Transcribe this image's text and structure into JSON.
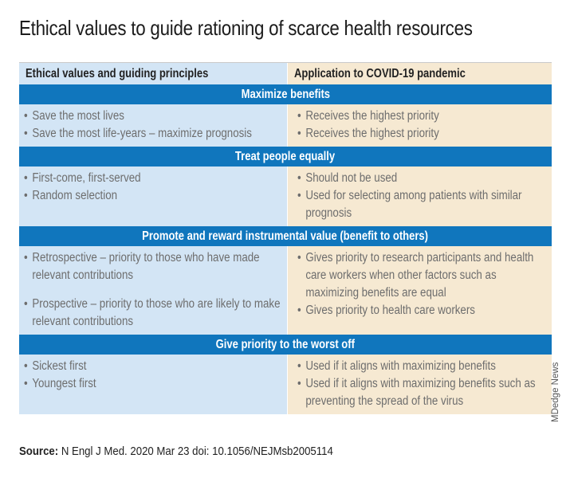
{
  "title": "Ethical values to guide rationing of scarce health resources",
  "headers": {
    "left": "Ethical values and guiding principles",
    "right": "Application to COVID-19 pandemic"
  },
  "sections": [
    {
      "heading": "Maximize benefits",
      "left": [
        "Save the most lives",
        "Save the most life-years – maximize prognosis"
      ],
      "right": [
        "Receives the highest priority",
        "Receives the highest priority"
      ]
    },
    {
      "heading": "Treat people equally",
      "left": [
        "First-come, first-served",
        "Random selection"
      ],
      "right": [
        "Should not be used",
        "Used for selecting among patients with similar prognosis"
      ]
    },
    {
      "heading": "Promote and reward instrumental value (benefit to others)",
      "left": [
        "Retrospective – priority to those who have made relevant contributions",
        "Prospective – priority to those who are likely to make relevant contributions"
      ],
      "right": [
        "Gives priority to research participants and health care workers when other factors such as maximizing benefits are equal",
        "Gives priority to health care workers"
      ]
    },
    {
      "heading": "Give priority to the worst off",
      "left": [
        "Sickest first",
        "Youngest first"
      ],
      "right": [
        "Used if it aligns with maximizing benefits",
        "Used if it aligns with maximizing benefits such as preventing the spread of the virus"
      ]
    }
  ],
  "source": {
    "label": "Source:",
    "text": "N Engl J Med. 2020 Mar 23 doi: 10.1056/NEJMsb2005114"
  },
  "credit": "MDedge News",
  "colors": {
    "band": "#1076bd",
    "left_column": "#d3e5f5",
    "right_column": "#f6e9d2"
  }
}
